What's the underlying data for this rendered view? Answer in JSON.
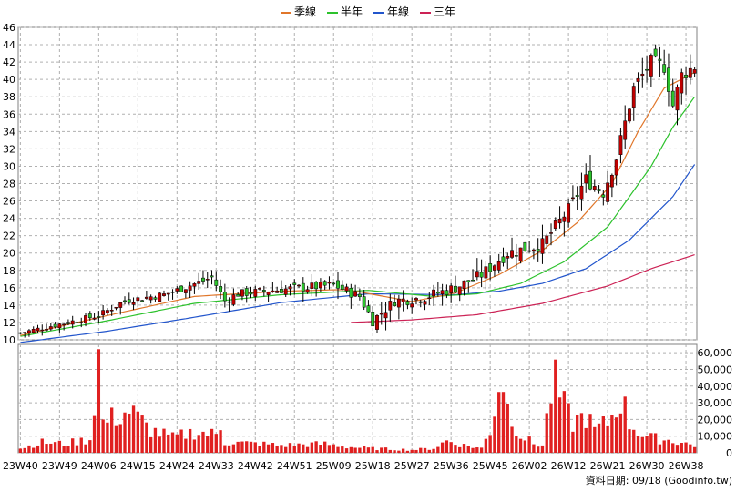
{
  "chart_data": {
    "type": "candlestick",
    "legend": [
      {
        "name": "季線",
        "color": "#e0762a"
      },
      {
        "name": "半年",
        "color": "#2cc22c"
      },
      {
        "name": "年線",
        "color": "#2255cc"
      },
      {
        "name": "三年",
        "color": "#cc2255"
      }
    ],
    "price_axis": {
      "min": 10,
      "max": 46,
      "ticks": [
        10,
        12,
        14,
        16,
        18,
        20,
        22,
        24,
        26,
        28,
        30,
        32,
        34,
        36,
        38,
        40,
        42,
        44,
        46
      ]
    },
    "volume_axis": {
      "min": 0,
      "max": 65000,
      "ticks": [
        "0",
        "10,000",
        "20,000",
        "30,000",
        "40,000",
        "50,000",
        "60,000"
      ],
      "tick_values": [
        0,
        10000,
        20000,
        30000,
        40000,
        50000,
        60000
      ]
    },
    "x_labels": [
      "23W40",
      "23W49",
      "24W06",
      "24W15",
      "24W24",
      "24W33",
      "24W42",
      "24W51",
      "25W09",
      "25W18",
      "25W27",
      "25W36",
      "25W45",
      "26W02",
      "26W12",
      "26W21",
      "26W30",
      "26W38"
    ],
    "footer": "資料日期: 09/18  (Goodinfo.tw)",
    "weeks": 156,
    "close_anchors": [
      [
        0,
        10.8
      ],
      [
        9,
        11.8
      ],
      [
        18,
        12.8
      ],
      [
        24,
        14.5
      ],
      [
        33,
        15.2
      ],
      [
        42,
        16.8
      ],
      [
        44,
        17.2
      ],
      [
        47,
        14.5
      ],
      [
        50,
        15.3
      ],
      [
        60,
        15.8
      ],
      [
        72,
        16.3
      ],
      [
        78,
        15.0
      ],
      [
        81,
        12.2
      ],
      [
        86,
        14.5
      ],
      [
        92,
        14.8
      ],
      [
        100,
        16.0
      ],
      [
        106,
        17.5
      ],
      [
        112,
        20.0
      ],
      [
        120,
        21.0
      ],
      [
        126,
        25.0
      ],
      [
        130,
        28.5
      ],
      [
        134,
        27.0
      ],
      [
        137,
        31.0
      ],
      [
        141,
        39.0
      ],
      [
        145,
        42.0
      ],
      [
        148,
        41.5
      ],
      [
        150,
        37.0
      ],
      [
        152,
        40.5
      ],
      [
        155,
        41.5
      ]
    ],
    "ma_quarter_anchors": [
      [
        0,
        10.5
      ],
      [
        20,
        12.8
      ],
      [
        40,
        15.0
      ],
      [
        60,
        15.6
      ],
      [
        75,
        15.8
      ],
      [
        90,
        14.4
      ],
      [
        100,
        15.4
      ],
      [
        110,
        17.5
      ],
      [
        120,
        20.3
      ],
      [
        128,
        23.5
      ],
      [
        136,
        28.0
      ],
      [
        142,
        34.0
      ],
      [
        148,
        39.0
      ],
      [
        155,
        40.8
      ]
    ],
    "ma_half_anchors": [
      [
        0,
        10.4
      ],
      [
        20,
        12.2
      ],
      [
        40,
        14.2
      ],
      [
        60,
        15.2
      ],
      [
        80,
        15.7
      ],
      [
        95,
        15.0
      ],
      [
        105,
        15.3
      ],
      [
        115,
        16.5
      ],
      [
        125,
        19.0
      ],
      [
        135,
        23.0
      ],
      [
        145,
        30.0
      ],
      [
        150,
        34.5
      ],
      [
        155,
        38.0
      ]
    ],
    "ma_year_anchors": [
      [
        0,
        9.7
      ],
      [
        20,
        11.0
      ],
      [
        40,
        12.6
      ],
      [
        60,
        14.3
      ],
      [
        80,
        15.3
      ],
      [
        100,
        15.2
      ],
      [
        110,
        15.6
      ],
      [
        120,
        16.5
      ],
      [
        130,
        18.2
      ],
      [
        140,
        21.5
      ],
      [
        150,
        26.5
      ],
      [
        155,
        30.2
      ]
    ],
    "ma_3y_start": 76,
    "ma_3y_anchors": [
      [
        76,
        12.0
      ],
      [
        90,
        12.3
      ],
      [
        105,
        12.9
      ],
      [
        120,
        14.2
      ],
      [
        135,
        16.2
      ],
      [
        145,
        18.2
      ],
      [
        155,
        19.8
      ]
    ],
    "volume_anchors": [
      [
        0,
        3000
      ],
      [
        5,
        7000
      ],
      [
        10,
        6000
      ],
      [
        16,
        9000
      ],
      [
        17,
        35000
      ],
      [
        18,
        65000
      ],
      [
        19,
        20000
      ],
      [
        25,
        28000
      ],
      [
        30,
        15000
      ],
      [
        35,
        10000
      ],
      [
        40,
        14000
      ],
      [
        45,
        12000
      ],
      [
        46,
        18000
      ],
      [
        47,
        7000
      ],
      [
        55,
        6000
      ],
      [
        60,
        5000
      ],
      [
        70,
        6000
      ],
      [
        75,
        4000
      ],
      [
        80,
        3000
      ],
      [
        85,
        2500
      ],
      [
        90,
        2000
      ],
      [
        95,
        3000
      ],
      [
        98,
        8000
      ],
      [
        102,
        5000
      ],
      [
        106,
        3000
      ],
      [
        108,
        15000
      ],
      [
        110,
        45000
      ],
      [
        111,
        50000
      ],
      [
        112,
        30000
      ],
      [
        115,
        12000
      ],
      [
        118,
        6000
      ],
      [
        120,
        5000
      ],
      [
        122,
        40000
      ],
      [
        123,
        45000
      ],
      [
        125,
        30000
      ],
      [
        127,
        20000
      ],
      [
        130,
        25000
      ],
      [
        132,
        15000
      ],
      [
        135,
        20000
      ],
      [
        137,
        30000
      ],
      [
        138,
        38000
      ],
      [
        140,
        20000
      ],
      [
        143,
        12000
      ],
      [
        145,
        10000
      ],
      [
        150,
        8000
      ],
      [
        155,
        5000
      ]
    ]
  }
}
